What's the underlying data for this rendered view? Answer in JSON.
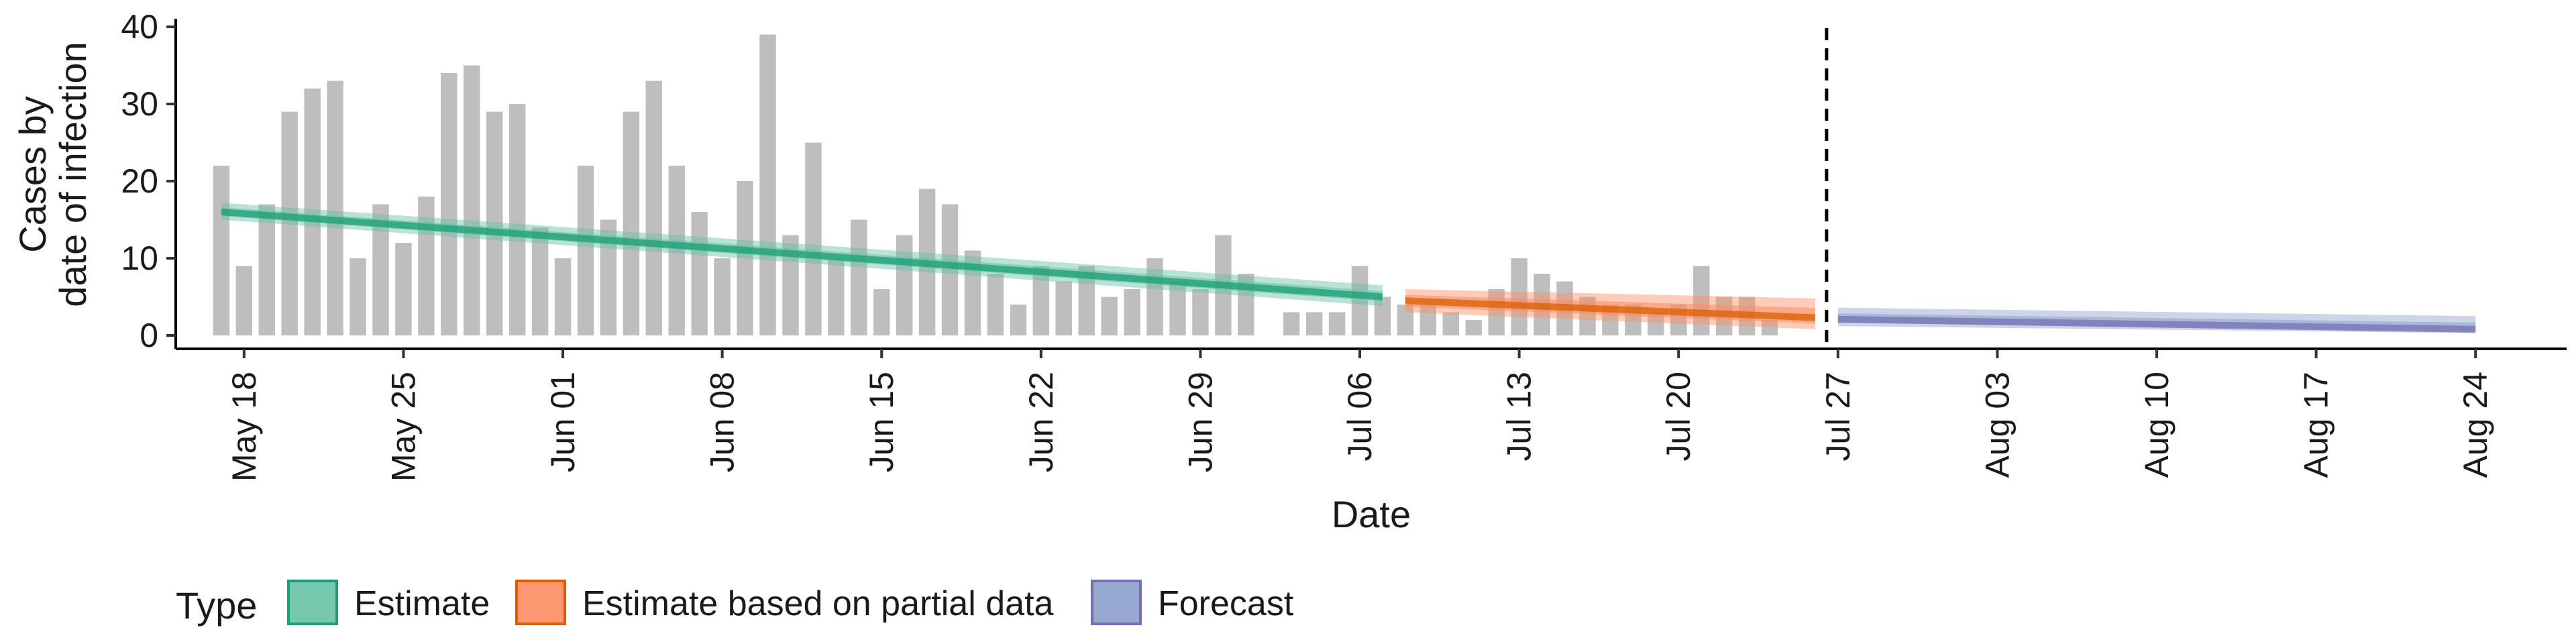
{
  "chart_data": {
    "type": "bar",
    "xlabel": "Date",
    "ylabel_lines": [
      "Cases by",
      "date of infection"
    ],
    "ylim": [
      0,
      40
    ],
    "y_ticks": [
      0,
      10,
      20,
      30,
      40
    ],
    "y_tick_labels": [
      "0",
      "10",
      "20",
      "30",
      "40"
    ],
    "x_range": [
      "2020-05-15",
      "2020-08-28"
    ],
    "x_ticks": [
      "2020-05-18",
      "2020-05-25",
      "2020-06-01",
      "2020-06-08",
      "2020-06-15",
      "2020-06-22",
      "2020-06-29",
      "2020-07-06",
      "2020-07-13",
      "2020-07-20",
      "2020-07-27",
      "2020-08-03",
      "2020-08-10",
      "2020-08-17",
      "2020-08-24"
    ],
    "x_tick_labels": [
      "May 18",
      "May 25",
      "Jun 01",
      "Jun 08",
      "Jun 15",
      "Jun 22",
      "Jun 29",
      "Jul 06",
      "Jul 13",
      "Jul 20",
      "Jul 27",
      "Aug 03",
      "Aug 10",
      "Aug 17",
      "Aug 24"
    ],
    "bars": {
      "start_date": "2020-05-17",
      "values": [
        22,
        9,
        17,
        29,
        32,
        33,
        10,
        17,
        12,
        18,
        34,
        35,
        29,
        30,
        14,
        10,
        22,
        15,
        29,
        33,
        22,
        16,
        10,
        20,
        39,
        13,
        25,
        10,
        15,
        6,
        13,
        19,
        17,
        11,
        8,
        4,
        9,
        7,
        9,
        5,
        6,
        10,
        7,
        6,
        13,
        8,
        0,
        3,
        3,
        3,
        9,
        5,
        4,
        4,
        3,
        2,
        6,
        10,
        8,
        7,
        5,
        4,
        4,
        3,
        4,
        9,
        5,
        5,
        2
      ],
      "color": "#bebebe"
    },
    "vline_date": "2020-07-26",
    "series": [
      {
        "name": "Estimate",
        "color": "#1b9e77",
        "fill": "#66c2a5",
        "start": "2020-05-17",
        "end": "2020-07-07",
        "median": [
          16,
          5
        ],
        "lower": [
          15,
          3.8
        ],
        "upper": [
          17.2,
          6.5
        ]
      },
      {
        "name": "Estimate based on partial data",
        "color": "#d95f02",
        "fill": "#fc8d62",
        "start": "2020-07-08",
        "end": "2020-07-26",
        "median": [
          4.5,
          2.3
        ],
        "lower": [
          3,
          0.8
        ],
        "upper": [
          6,
          4.8
        ]
      },
      {
        "name": "Forecast",
        "color": "#7570b3",
        "fill": "#8da0cb",
        "start": "2020-07-27",
        "end": "2020-08-24",
        "median": [
          2.1,
          0.8
        ],
        "lower": [
          1.2,
          0.3
        ],
        "upper": [
          3.6,
          2.5
        ]
      }
    ],
    "legend": {
      "title": "Type",
      "position": "bottom",
      "items": [
        "Estimate",
        "Estimate based on partial data",
        "Forecast"
      ]
    },
    "grid": false
  }
}
